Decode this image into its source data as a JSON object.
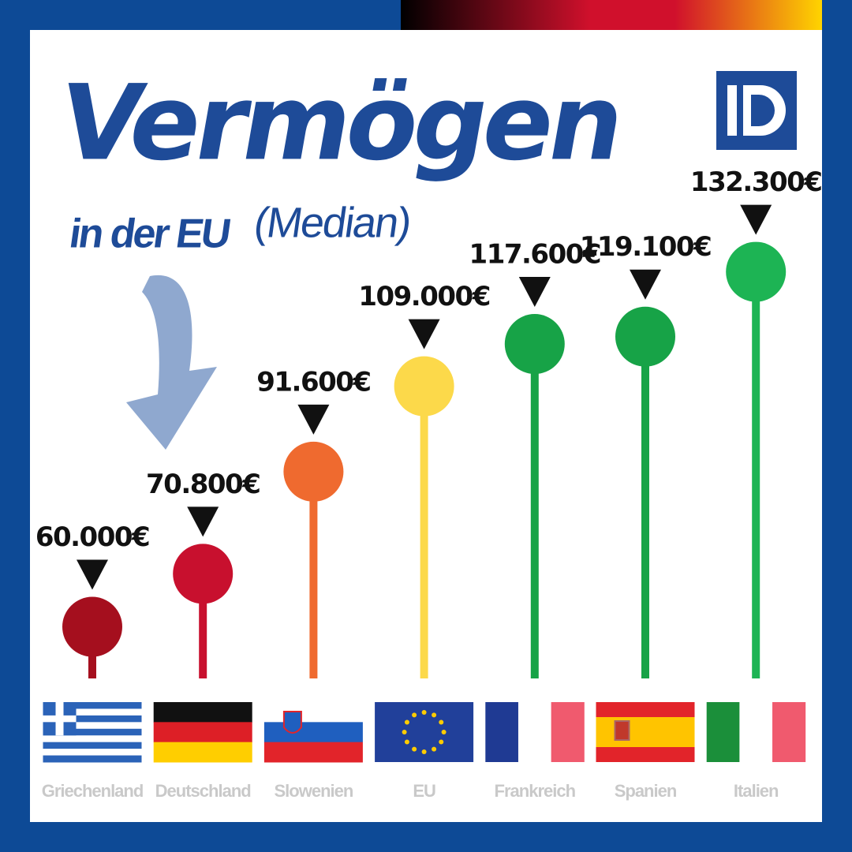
{
  "chart_data": {
    "type": "lollipop",
    "title": "Vermögen",
    "subtitle": "in der EU",
    "annotation": "(Median)",
    "categories": [
      "Griechenland",
      "Deutschland",
      "Slowenien",
      "EU",
      "Frankreich",
      "Spanien",
      "Italien"
    ],
    "values": [
      60000,
      70800,
      91600,
      109000,
      117600,
      119100,
      132300
    ],
    "value_labels": [
      "60.000€",
      "70.800€",
      "91.600€",
      "109.000€",
      "117.600€",
      "119.100€",
      "132.300€"
    ],
    "colors": [
      "#a50f1e",
      "#c8102e",
      "#ef6a2f",
      "#fcd94a",
      "#17a347",
      "#17a347",
      "#1db454"
    ]
  }
}
